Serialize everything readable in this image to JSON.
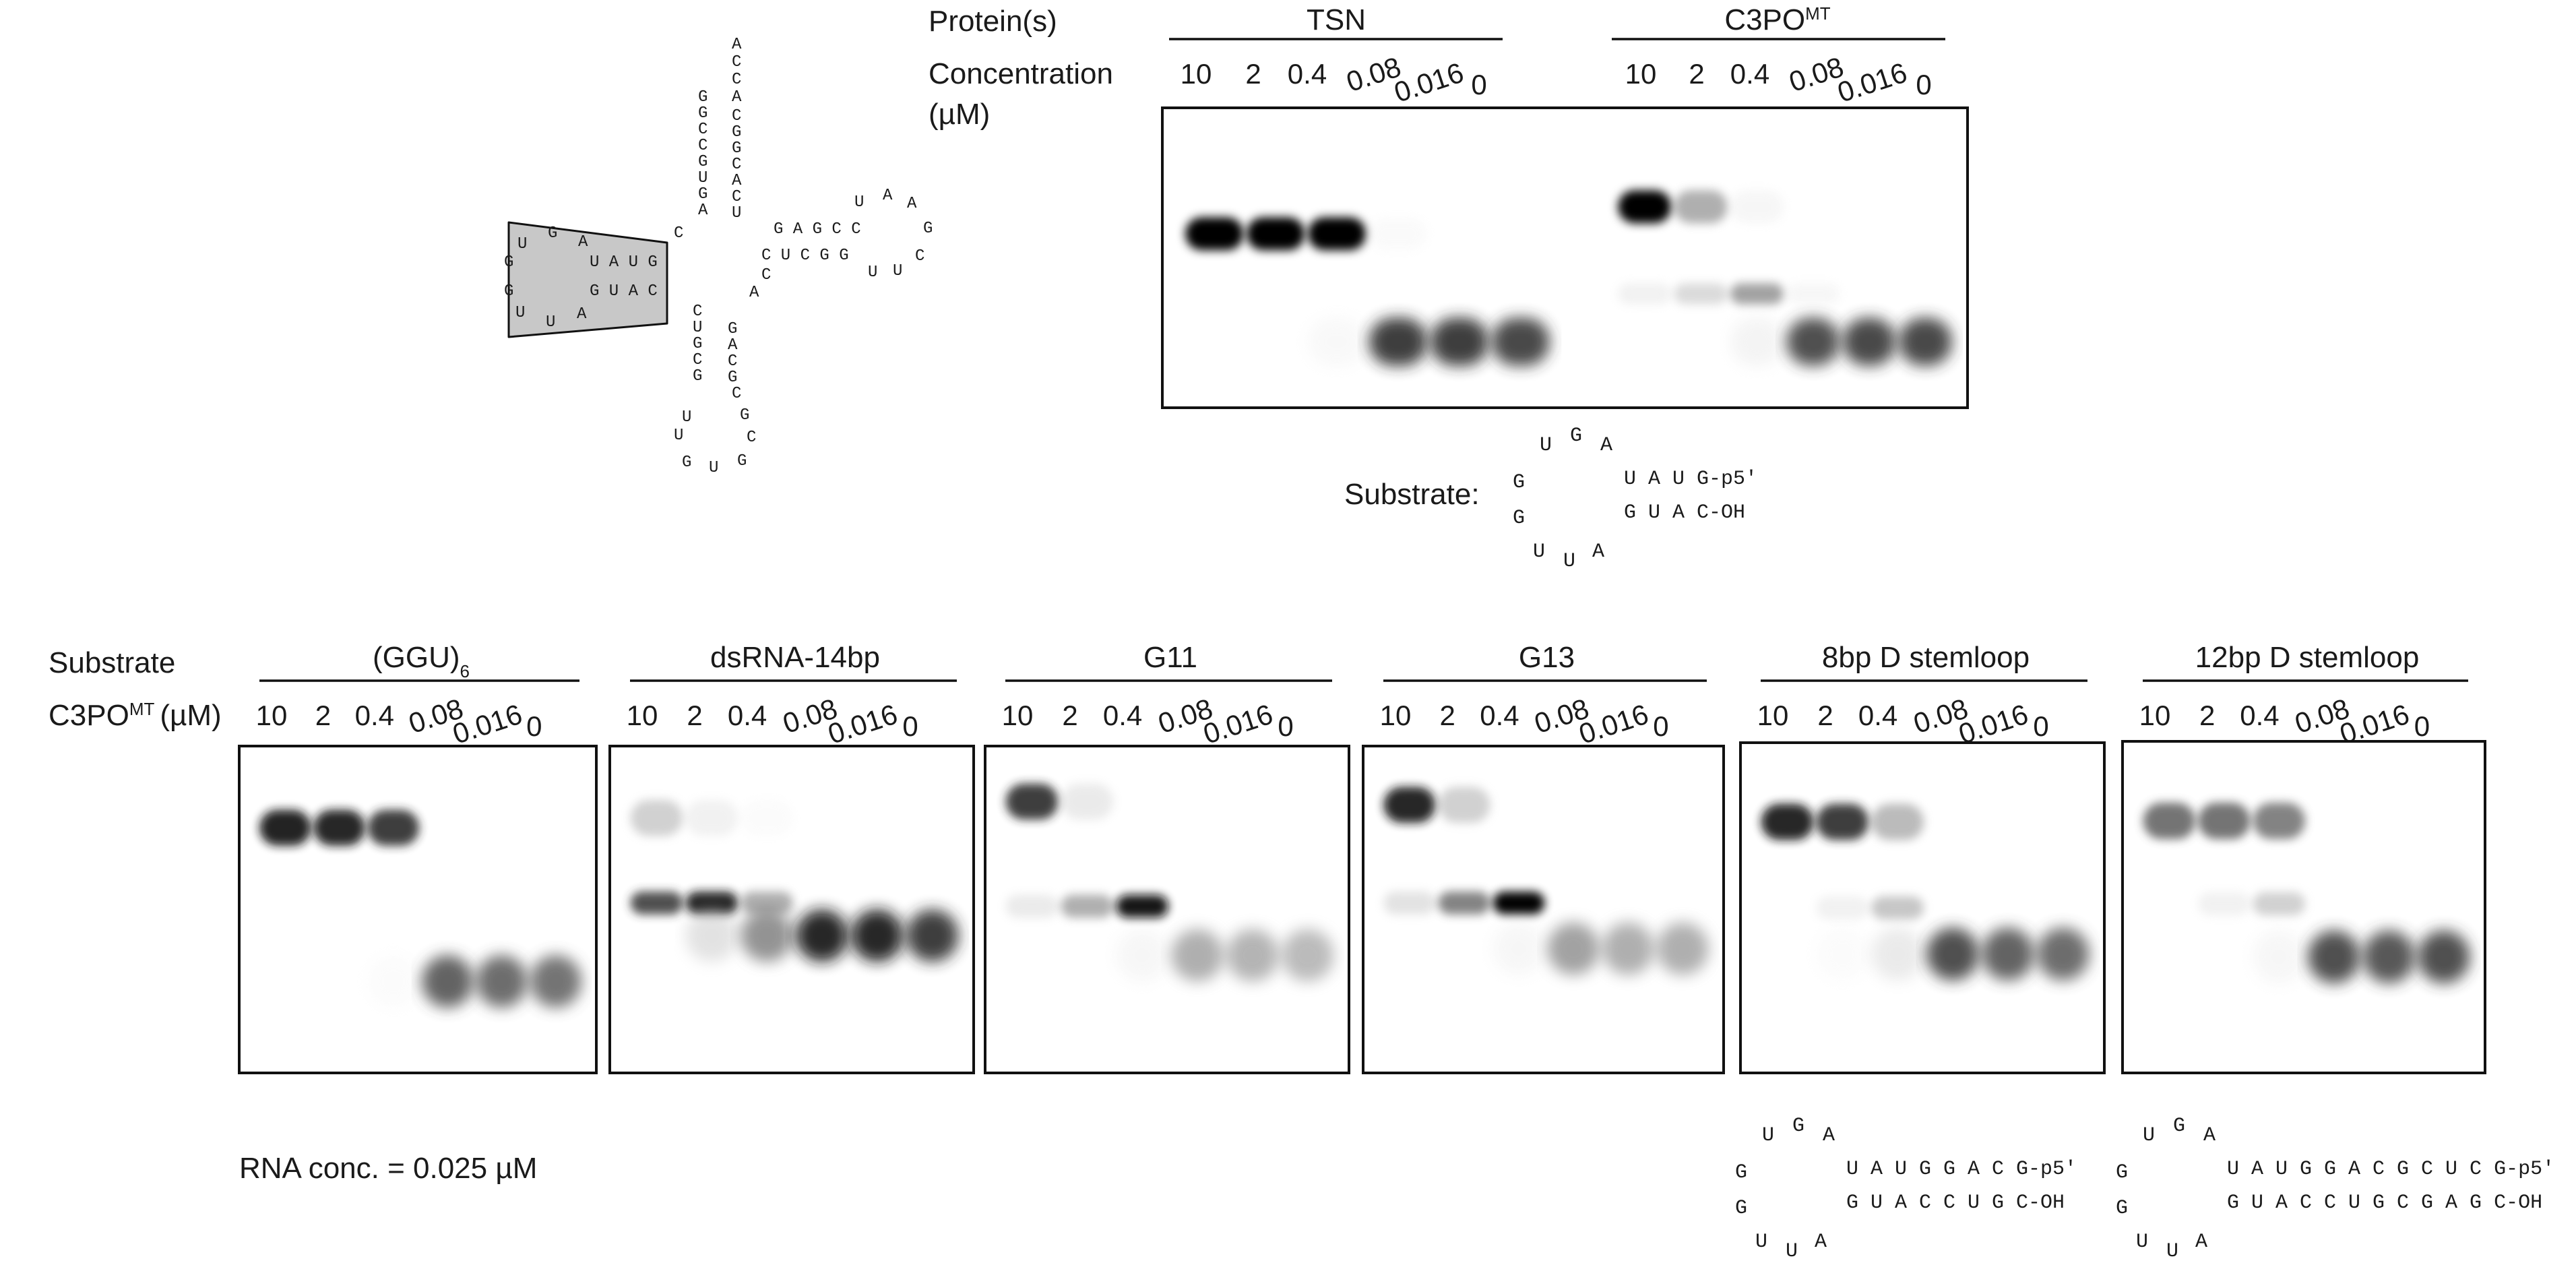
{
  "top_panel": {
    "protein_label": "Protein(s)",
    "concentration_label": "Concentration",
    "concentration_unit": "(µM)",
    "proteins": [
      {
        "name": "TSN",
        "superscript": ""
      },
      {
        "name": "C3PO",
        "superscript": "MT"
      }
    ],
    "concentrations": [
      "10",
      "2",
      "0.4",
      "0.08",
      "0.016",
      "0"
    ],
    "substrate_label": "Substrate:",
    "substrate_structure": {
      "loop_top": [
        "U",
        "G",
        "A"
      ],
      "loop_left": [
        "G",
        "G"
      ],
      "loop_bottom": [
        "U",
        "U",
        "A"
      ],
      "strand_5p": "U A U G-p5′",
      "strand_3p": "G U A C-OH"
    }
  },
  "trna_structure": {
    "acceptor_tail": [
      "A",
      "C",
      "C",
      "A"
    ],
    "acceptor_left": [
      "G",
      "G",
      "C",
      "C",
      "G",
      "U",
      "G",
      "A"
    ],
    "acceptor_right": [
      "C",
      "G",
      "G",
      "C",
      "A",
      "C",
      "U"
    ],
    "connector": [
      "C"
    ],
    "d_loop": [
      "U",
      "G",
      "A",
      "G",
      "G",
      "U",
      "U",
      "A"
    ],
    "d_stem_top": "U A U G",
    "d_stem_bottom": "G U A C",
    "t_stem_top": "G A G C C",
    "t_stem_bottom": "C U C G G",
    "t_loop": [
      "U",
      "A",
      "A",
      "G",
      "C",
      "U",
      "U"
    ],
    "variable": [
      "C",
      "A"
    ],
    "anticodon_left": [
      "C",
      "U",
      "G",
      "C",
      "G"
    ],
    "anticodon_right": [
      "G",
      "A",
      "C",
      "G",
      "C"
    ],
    "anticodon_loop": [
      "U",
      "U",
      "G",
      "U",
      "G",
      "C",
      "G"
    ]
  },
  "bottom_panel": {
    "substrate_label": "Substrate",
    "protein_label": "C3PO",
    "protein_superscript": "MT",
    "protein_unit": "(µM)",
    "concentrations": [
      "10",
      "2",
      "0.4",
      "0.08",
      "0.016",
      "0"
    ],
    "substrates": [
      {
        "name": "(GGU)",
        "subscript": "6"
      },
      {
        "name": "dsRNA-14bp",
        "subscript": ""
      },
      {
        "name": "G11",
        "subscript": ""
      },
      {
        "name": "G13",
        "subscript": ""
      },
      {
        "name": "8bp D stemloop",
        "subscript": ""
      },
      {
        "name": "12bp D stemloop",
        "subscript": ""
      }
    ],
    "rna_conc": "RNA conc. = 0.025 µM",
    "stemloop_8bp": {
      "loop_top": [
        "U",
        "G",
        "A"
      ],
      "loop_left": [
        "G",
        "G"
      ],
      "loop_bottom": [
        "U",
        "U",
        "A"
      ],
      "strand_5p": "U A U G G A C G-p5′",
      "strand_3p": "G U A C C U G C-OH"
    },
    "stemloop_12bp": {
      "loop_top": [
        "U",
        "G",
        "A"
      ],
      "loop_left": [
        "G",
        "G"
      ],
      "loop_bottom": [
        "U",
        "U",
        "A"
      ],
      "strand_5p": "U A U G G A C G C U C G-p5′",
      "strand_3p": "G U A C C U G C G A G C-OH"
    }
  },
  "gels": {
    "top": [
      {
        "bound": [
          1,
          1,
          1,
          0.06,
          0,
          0
        ],
        "free": [
          0,
          0,
          0.08,
          0.85,
          0.85,
          0.82
        ],
        "intermediate": [
          0,
          0,
          0,
          0,
          0,
          0
        ]
      },
      {
        "bound": [
          1,
          0.5,
          0.1,
          0,
          0,
          0
        ],
        "free": [
          0,
          0,
          0.12,
          0.8,
          0.82,
          0.82
        ],
        "intermediate": [
          0.15,
          0.3,
          0.55,
          0.1,
          0,
          0
        ]
      }
    ],
    "bottom": [
      {
        "bound": [
          0.92,
          0.9,
          0.85,
          0,
          0,
          0
        ],
        "free": [
          0,
          0,
          0.05,
          0.75,
          0.72,
          0.7
        ],
        "intermediate": [
          0,
          0,
          0,
          0,
          0,
          0
        ]
      },
      {
        "bound": [
          0.35,
          0.15,
          0.05,
          0,
          0,
          0
        ],
        "free": [
          0,
          0.25,
          0.6,
          0.9,
          0.9,
          0.85
        ],
        "intermediate": [
          0.8,
          0.9,
          0.5,
          0,
          0,
          0
        ]
      },
      {
        "bound": [
          0.85,
          0.2,
          0,
          0,
          0,
          0
        ],
        "free": [
          0,
          0,
          0.1,
          0.5,
          0.48,
          0.45
        ],
        "intermediate": [
          0.2,
          0.5,
          0.95,
          0,
          0,
          0
        ]
      },
      {
        "bound": [
          0.9,
          0.35,
          0,
          0,
          0,
          0
        ],
        "free": [
          0,
          0,
          0.1,
          0.55,
          0.5,
          0.5
        ],
        "intermediate": [
          0.25,
          0.65,
          0.98,
          0,
          0,
          0
        ]
      },
      {
        "bound": [
          0.9,
          0.85,
          0.45,
          0,
          0,
          0
        ],
        "free": [
          0,
          0.05,
          0.2,
          0.8,
          0.75,
          0.72
        ],
        "intermediate": [
          0,
          0.15,
          0.4,
          0,
          0,
          0
        ]
      },
      {
        "bound": [
          0.7,
          0.7,
          0.65,
          0,
          0,
          0
        ],
        "free": [
          0,
          0,
          0.1,
          0.8,
          0.78,
          0.8
        ],
        "intermediate": [
          0,
          0.15,
          0.35,
          0,
          0,
          0
        ]
      }
    ]
  },
  "colors": {
    "ink": "#1a1a1a",
    "band": "#0a0a0a",
    "trna_box": "#c8c8c8",
    "gel_bg": "#ffffff"
  }
}
